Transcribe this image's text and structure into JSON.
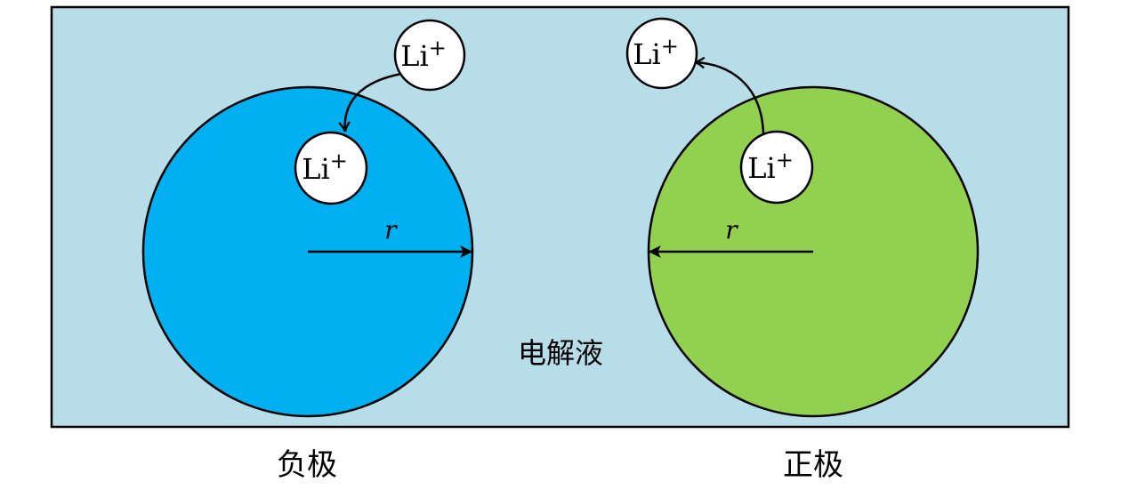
{
  "colors": {
    "electrolyte": "#b7dde8",
    "anode": "#00b0f0",
    "cathode": "#92d050",
    "ion": "#ffffff",
    "stroke": "#000000"
  },
  "labels": {
    "electrolyte": "电解液",
    "anode": "负极",
    "cathode": "正极",
    "radius_symbol": "r",
    "ion_base": "Li",
    "ion_charge": "+"
  }
}
